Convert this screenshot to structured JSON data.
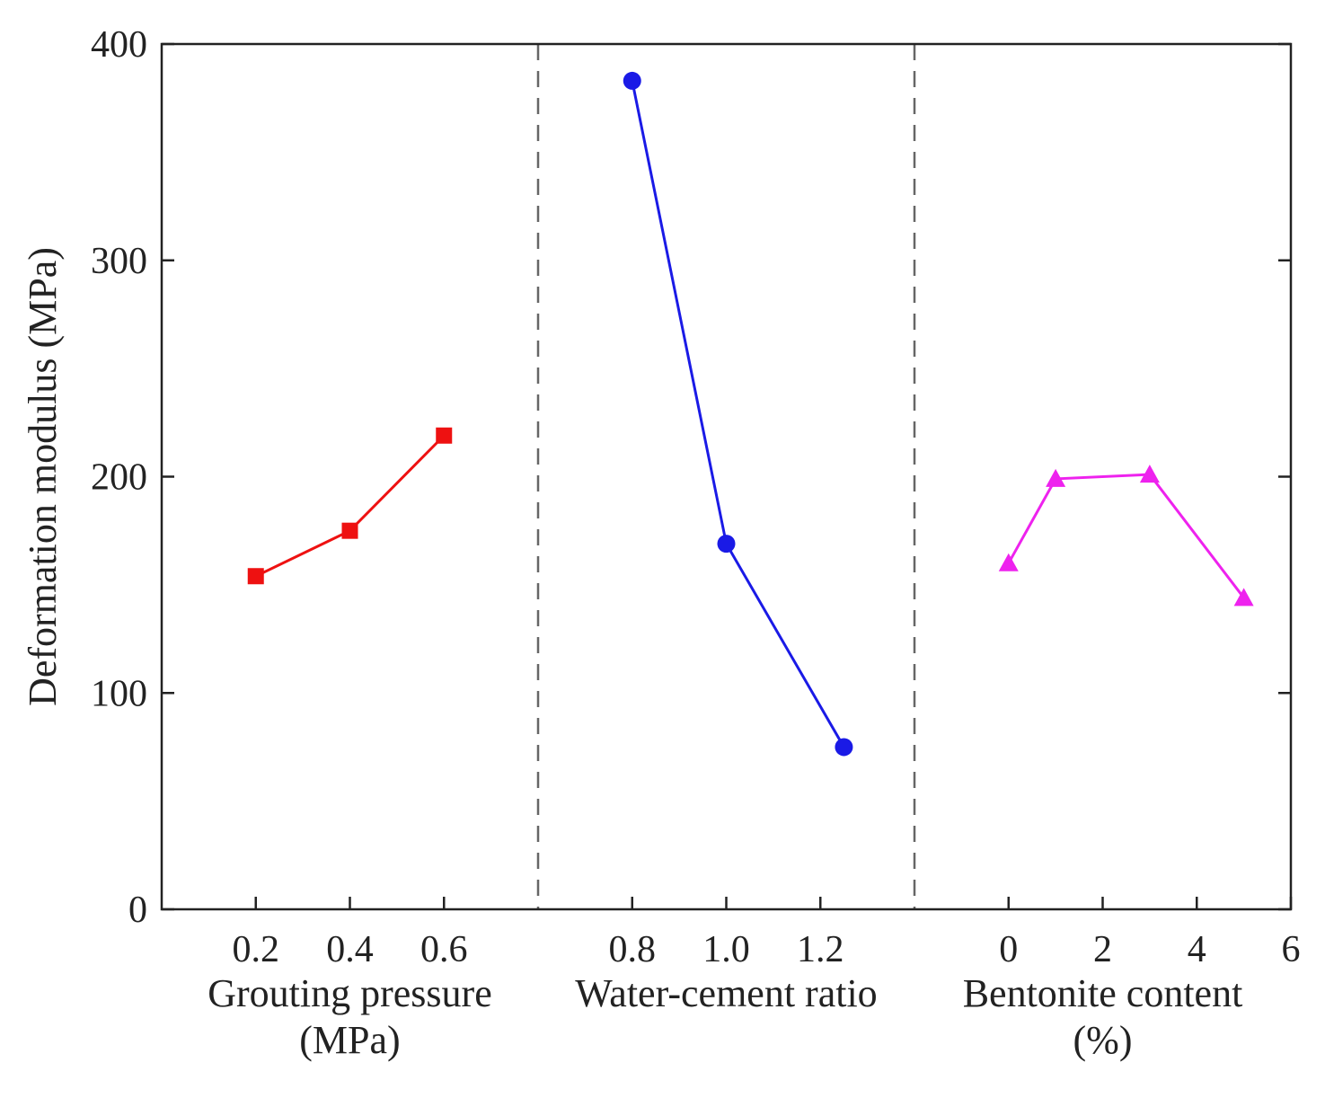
{
  "chart_data": {
    "type": "line",
    "ylabel": "Deformation modulus (MPa)",
    "ylim": [
      0,
      400
    ],
    "yticks": [
      0,
      100,
      200,
      300,
      400
    ],
    "panels": [
      {
        "name": "grouting-pressure",
        "xlabel_line1": "Grouting pressure",
        "xlabel_line2": "(MPa)",
        "xlim": [
          0,
          0.8
        ],
        "xticks": [
          0.2,
          0.4,
          0.6
        ],
        "xtick_labels": [
          "0.2",
          "0.4",
          "0.6"
        ],
        "series": {
          "name": "Grouting pressure",
          "color": "#ee1111",
          "marker": "square",
          "x": [
            0.2,
            0.4,
            0.6
          ],
          "y": [
            154,
            175,
            219
          ]
        }
      },
      {
        "name": "water-cement-ratio",
        "xlabel_line1": "Water-cement ratio",
        "xlabel_line2": "",
        "xlim": [
          0.6,
          1.4
        ],
        "xticks": [
          0.8,
          1.0,
          1.2
        ],
        "xtick_labels": [
          "0.8",
          "1.0",
          "1.2"
        ],
        "series": {
          "name": "Water-cement ratio",
          "color": "#1a1ae6",
          "marker": "circle",
          "x": [
            0.8,
            1.0,
            1.25
          ],
          "y": [
            383,
            169,
            75
          ]
        }
      },
      {
        "name": "bentonite-content",
        "xlabel_line1": "Bentonite content",
        "xlabel_line2": "(%)",
        "xlim": [
          -2,
          6
        ],
        "xticks": [
          0,
          2,
          4,
          6
        ],
        "xtick_labels": [
          "0",
          "2",
          "4",
          "6"
        ],
        "series": {
          "name": "Bentonite content",
          "color": "#ee22ee",
          "marker": "triangle",
          "x": [
            0,
            1,
            3,
            5
          ],
          "y": [
            160,
            199,
            201,
            144
          ]
        }
      }
    ]
  }
}
